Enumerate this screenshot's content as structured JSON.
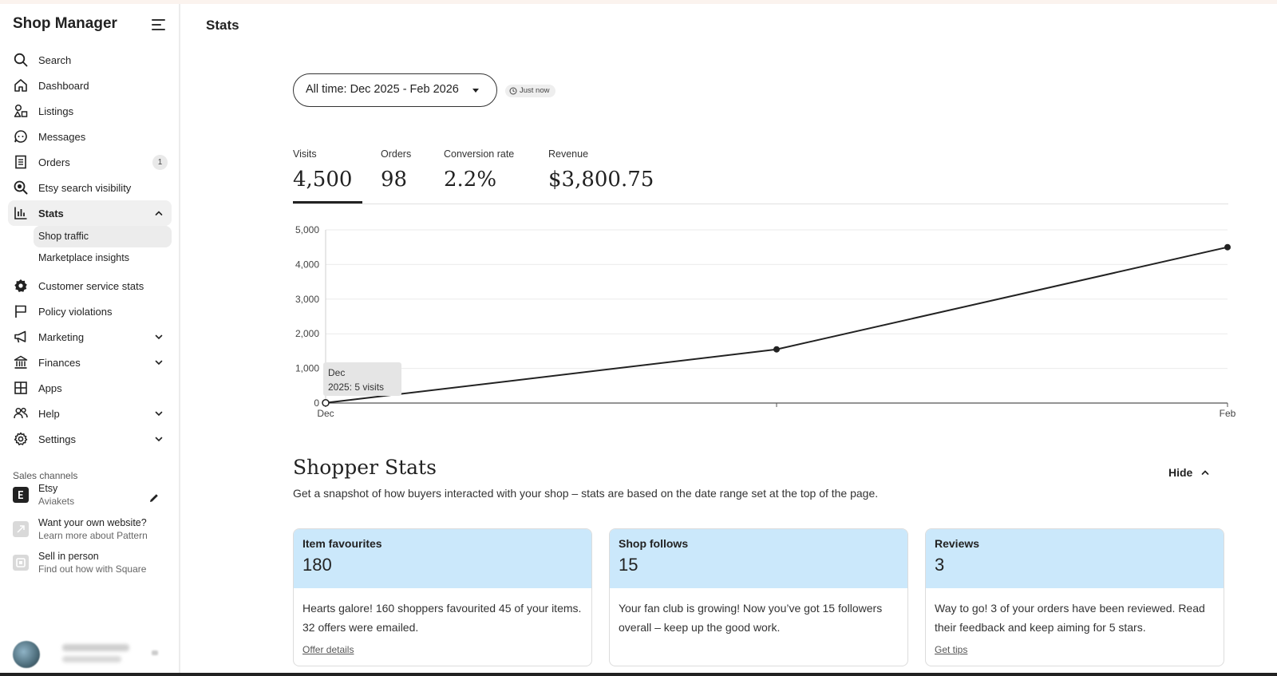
{
  "app": {
    "title": "Shop Manager"
  },
  "sidebar": {
    "items": [
      {
        "label": "Search",
        "icon": "search-icon"
      },
      {
        "label": "Dashboard",
        "icon": "home-icon"
      },
      {
        "label": "Listings",
        "icon": "shapes-icon"
      },
      {
        "label": "Messages",
        "icon": "chat-icon"
      },
      {
        "label": "Orders",
        "icon": "receipt-icon",
        "badge": "1"
      },
      {
        "label": "Etsy search visibility",
        "icon": "search-visibility-icon"
      },
      {
        "label": "Stats",
        "icon": "bar-chart-icon",
        "expanded": true
      },
      {
        "label": "Customer service stats",
        "icon": "badge-icon"
      },
      {
        "label": "Policy violations",
        "icon": "flag-icon"
      },
      {
        "label": "Marketing",
        "icon": "megaphone-icon"
      },
      {
        "label": "Finances",
        "icon": "bank-icon"
      },
      {
        "label": "Apps",
        "icon": "grid-icon"
      },
      {
        "label": "Help",
        "icon": "people-icon"
      },
      {
        "label": "Settings",
        "icon": "gear-icon"
      }
    ],
    "stats_sub": [
      "Shop traffic",
      "Marketplace insights"
    ],
    "sales_channels_label": "Sales channels",
    "channels": [
      {
        "title": "Etsy",
        "subtitle": "Aviakets"
      },
      {
        "title": "Want your own website?",
        "subtitle": "Learn more about Pattern"
      },
      {
        "title": "Sell in person",
        "subtitle": "Find out how with Square"
      }
    ]
  },
  "main": {
    "page_title": "Stats",
    "date_range": "All time: Dec 2025 - Feb 2026",
    "updated": "Just now",
    "metrics": [
      {
        "label": "Visits",
        "value": "4,500"
      },
      {
        "label": "Orders",
        "value": "98"
      },
      {
        "label": "Conversion rate",
        "value": "2.2%"
      },
      {
        "label": "Revenue",
        "value": "$3,800.75"
      }
    ],
    "tooltip": {
      "line1": "Dec",
      "line2": "2025: 5 visits"
    },
    "shopper": {
      "title": "Shopper Stats",
      "description": "Get a snapshot of how buyers interacted with your shop – stats are based on the date range set at the top of the page.",
      "hide_label": "Hide",
      "cards": [
        {
          "title": "Item favourites",
          "value": "180",
          "body": "Hearts galore! 160 shoppers favourited 45 of your items. 32 offers were emailed.",
          "link": "Offer details"
        },
        {
          "title": "Shop follows",
          "value": "15",
          "body": "Your fan club is growing! Now you’ve got 15 followers overall – keep up the good work.",
          "link": ""
        },
        {
          "title": "Reviews",
          "value": "3",
          "body": "Way to go! 3 of your orders have been reviewed. Read their feedback and keep aiming for 5 stars.",
          "link": "Get tips"
        }
      ]
    }
  },
  "chart_data": {
    "type": "line",
    "x": [
      "Dec",
      "",
      "Feb"
    ],
    "values": [
      5,
      1550,
      4500
    ],
    "ylim": [
      0,
      5000
    ],
    "yticks": [
      "5,000",
      "4,000",
      "3,000",
      "2,000",
      "1,000",
      "0"
    ],
    "grid": true,
    "line_color": "#222222"
  }
}
